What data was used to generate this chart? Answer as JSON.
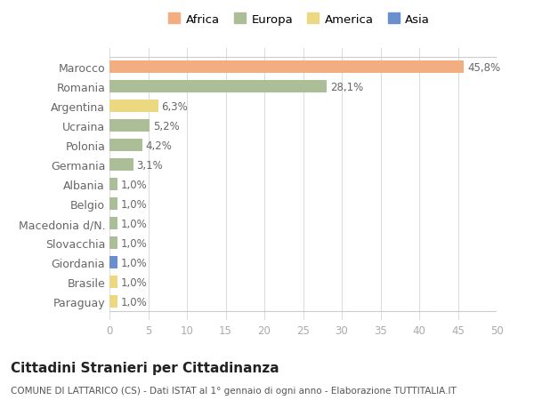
{
  "countries": [
    "Marocco",
    "Romania",
    "Argentina",
    "Ucraina",
    "Polonia",
    "Germania",
    "Albania",
    "Belgio",
    "Macedonia d/N.",
    "Slovacchia",
    "Giordania",
    "Brasile",
    "Paraguay"
  ],
  "values": [
    45.8,
    28.1,
    6.3,
    5.2,
    4.2,
    3.1,
    1.0,
    1.0,
    1.0,
    1.0,
    1.0,
    1.0,
    1.0
  ],
  "labels": [
    "45,8%",
    "28,1%",
    "6,3%",
    "5,2%",
    "4,2%",
    "3,1%",
    "1,0%",
    "1,0%",
    "1,0%",
    "1,0%",
    "1,0%",
    "1,0%",
    "1,0%"
  ],
  "colors": [
    "#F2AD80",
    "#ABBE97",
    "#EDD882",
    "#ABBE97",
    "#ABBE97",
    "#ABBE97",
    "#ABBE97",
    "#ABBE97",
    "#ABBE97",
    "#ABBE97",
    "#6A8FCF",
    "#EDD882",
    "#EDD882"
  ],
  "legend_labels": [
    "Africa",
    "Europa",
    "America",
    "Asia"
  ],
  "legend_colors": [
    "#F2AD80",
    "#ABBE97",
    "#EDD882",
    "#6A8FCF"
  ],
  "title": "Cittadini Stranieri per Cittadinanza",
  "subtitle": "COMUNE DI LATTARICO (CS) - Dati ISTAT al 1° gennaio di ogni anno - Elaborazione TUTTITALIA.IT",
  "xlim": [
    0,
    50
  ],
  "xticks": [
    0,
    5,
    10,
    15,
    20,
    25,
    30,
    35,
    40,
    45,
    50
  ],
  "background_color": "#ffffff",
  "grid_color": "#dddddd",
  "bar_height": 0.65,
  "label_fontsize": 8.5,
  "tick_fontsize": 8.5,
  "ytick_fontsize": 9,
  "legend_fontsize": 9.5,
  "title_fontsize": 11,
  "subtitle_fontsize": 7.5
}
